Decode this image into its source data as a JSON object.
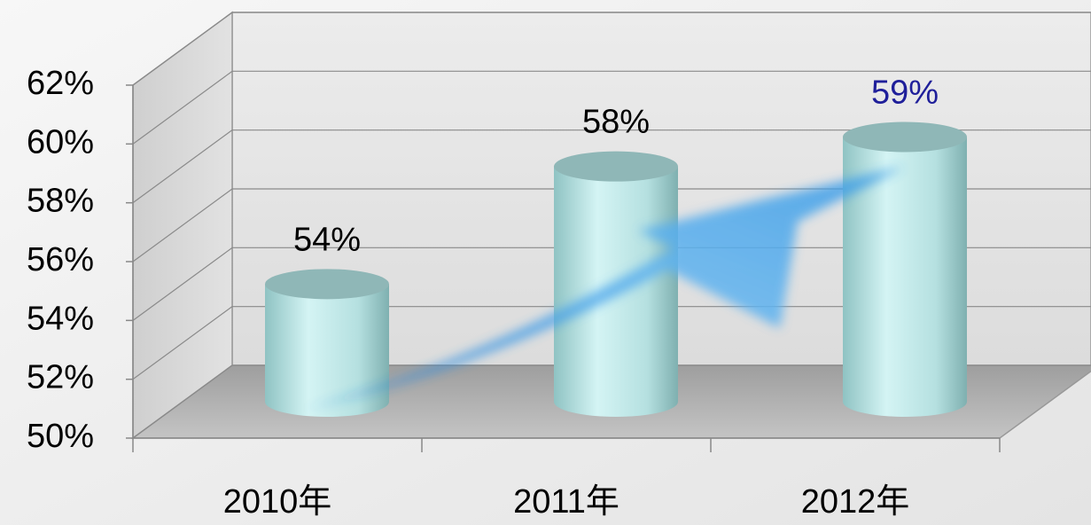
{
  "chart_data": {
    "type": "bar",
    "categories": [
      "2010年",
      "2011年",
      "2012年"
    ],
    "values": [
      54,
      58,
      59
    ],
    "value_labels": [
      "54%",
      "58%",
      "59%"
    ],
    "label_colors": [
      "#000000",
      "#000000",
      "#1f1f9a"
    ],
    "color": "#a9dcdc",
    "ylim": [
      50,
      62
    ],
    "yticks": [
      {
        "value": 50,
        "label": "50%"
      },
      {
        "value": 52,
        "label": "52%"
      },
      {
        "value": 54,
        "label": "54%"
      },
      {
        "value": 56,
        "label": "56%"
      },
      {
        "value": 58,
        "label": "58%"
      },
      {
        "value": 60,
        "label": "60%"
      },
      {
        "value": 62,
        "label": "62%"
      }
    ],
    "grid": true
  }
}
